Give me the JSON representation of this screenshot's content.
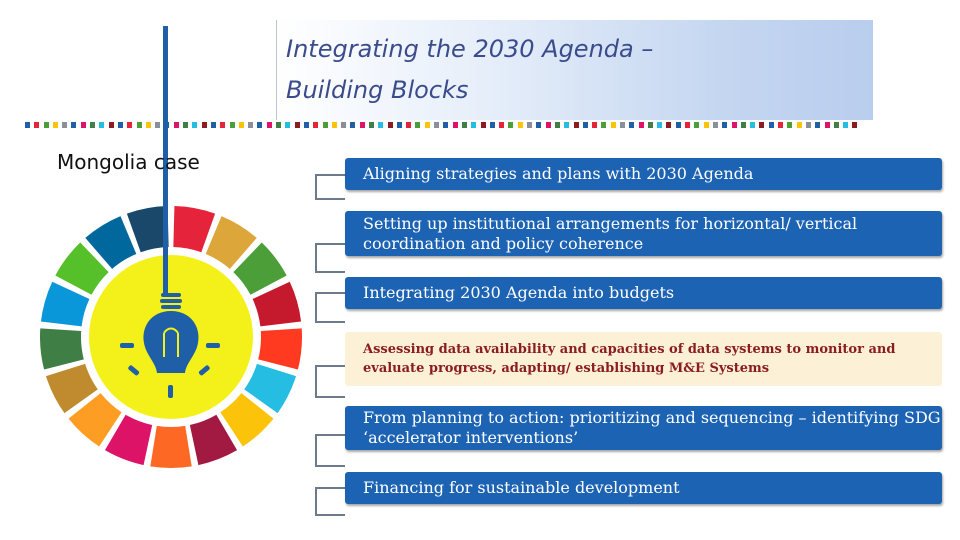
{
  "title": {
    "line1": "Integrating the 2030 Agenda –",
    "line2": "Building Blocks"
  },
  "case_label": "Mongolia case",
  "blocks": [
    {
      "text": "Aligning strategies and plans with 2030 Agenda"
    },
    {
      "text": "Setting up institutional arrangements for horizontal/ vertical coordination and policy coherence"
    },
    {
      "text": "Integrating 2030 Agenda into budgets"
    },
    {
      "text": "Assessing data availability and capacities of data systems to monitor and evaluate progress, adapting/ establishing M&E Systems"
    },
    {
      "text": "From planning to action: prioritizing and sequencing – identifying SDG ‘accelerator interventions’"
    },
    {
      "text": "Financing for sustainable development"
    }
  ],
  "colors": {
    "title_text": "#3a4c8c",
    "block_blue": "#1d63b3",
    "block_cream": "#fcf1d6",
    "cream_text": "#8b1d22",
    "bulb_glow": "#f4f11a",
    "bulb_blue": "#1f5fa7"
  },
  "sdg_colors": [
    "#e5243b",
    "#dda63a",
    "#4c9f38",
    "#c5192d",
    "#ff3a21",
    "#26bde2",
    "#fcc30b",
    "#a21942",
    "#fd6925",
    "#dd1367",
    "#fd9d24",
    "#bf8b2e",
    "#3f7e44",
    "#0a97d9",
    "#56c02b",
    "#00689d",
    "#19486a"
  ],
  "icons": [
    "light-bulb-icon",
    "sdg-wheel-icon"
  ]
}
